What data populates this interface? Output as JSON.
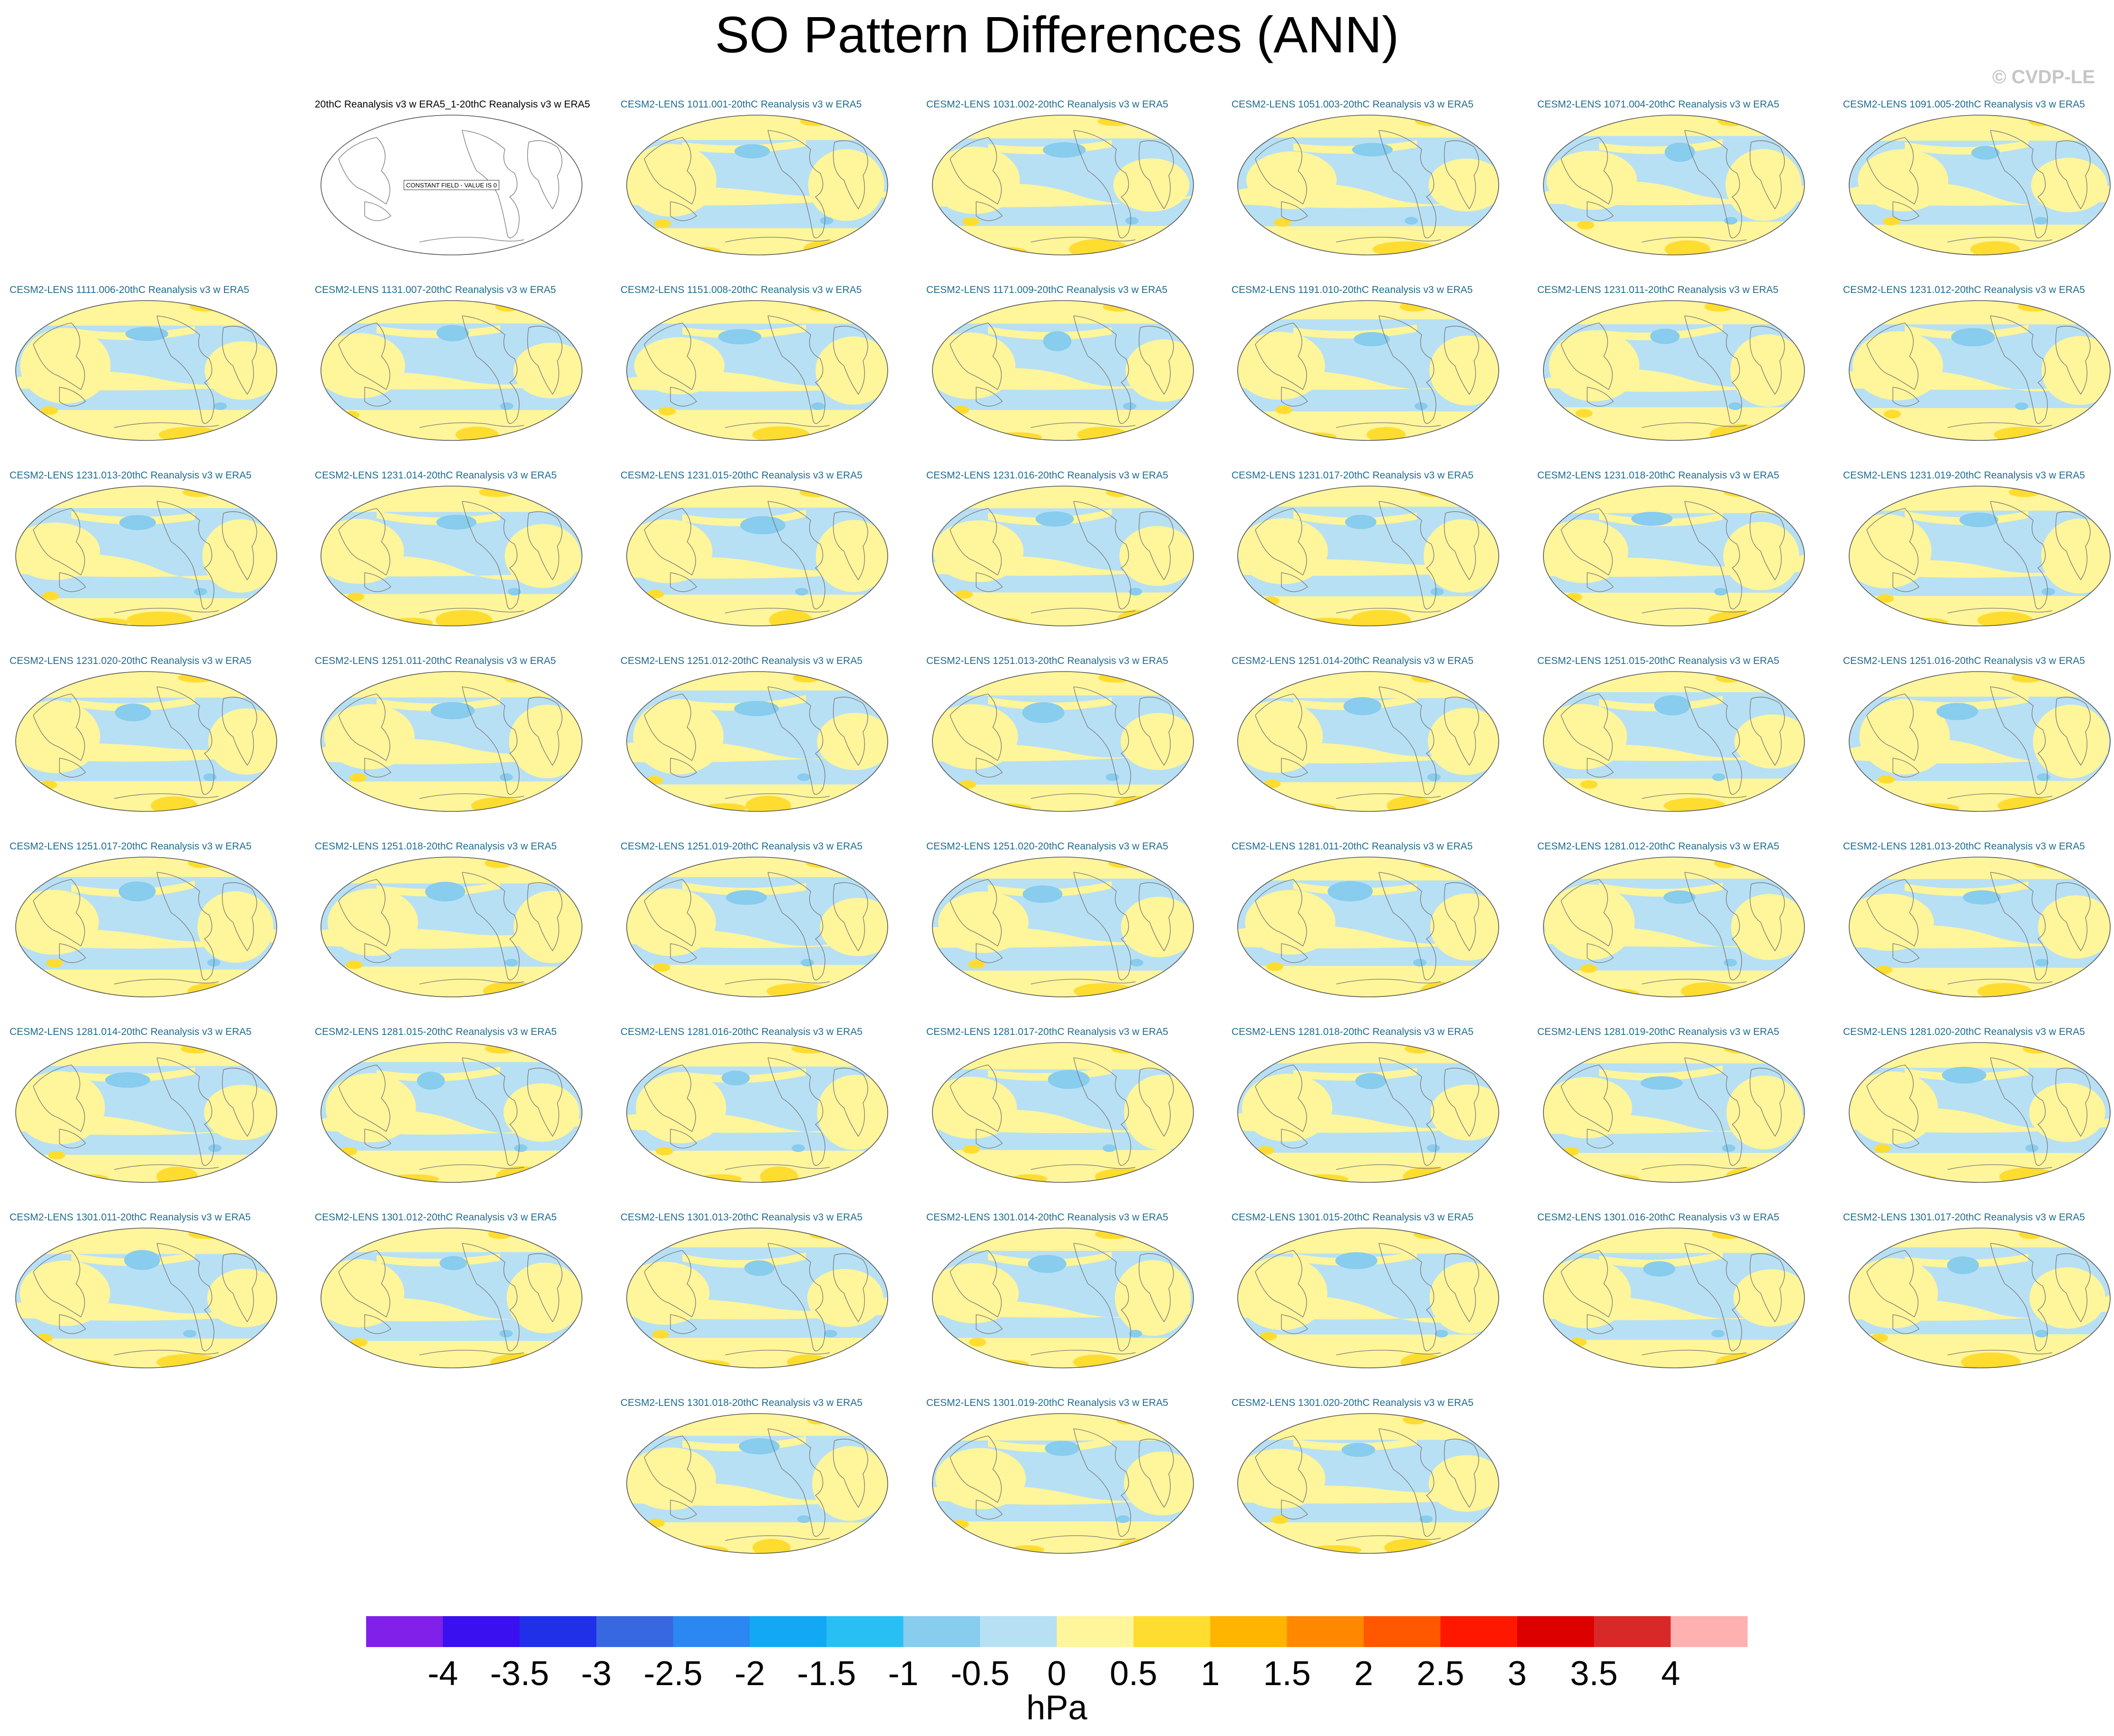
{
  "title": "SO Pattern Differences (ANN)",
  "watermark": "© CVDP-LE",
  "chart_data": {
    "type": "heatmap",
    "title": "SO Pattern Differences (ANN)",
    "variable_units": "hPa",
    "colorbar": {
      "label": "hPa",
      "ticks": [
        "-4",
        "-3.5",
        "-3",
        "-2.5",
        "-2",
        "-1.5",
        "-1",
        "-0.5",
        "0",
        "0.5",
        "1",
        "1.5",
        "2",
        "2.5",
        "3",
        "3.5",
        "4"
      ],
      "levels": [
        -4,
        -3.5,
        -3,
        -2.5,
        -2,
        -1.5,
        -1,
        -0.5,
        0,
        0.5,
        1,
        1.5,
        2,
        2.5,
        3,
        3.5,
        4
      ],
      "colors": [
        "#8020e8",
        "#3a10f0",
        "#2030e8",
        "#3868e0",
        "#2a88f0",
        "#12a8f4",
        "#28c0f4",
        "#88ccee",
        "#b8e0f4",
        "#fff59a",
        "#ffdc30",
        "#ffb400",
        "#ff8800",
        "#ff5800",
        "#ff1800",
        "#dd0000",
        "#d82828",
        "#ffb0b0"
      ]
    },
    "reference_panel": {
      "title": "20thC Reanalysis v3 w ERA5_1-20thC Reanalysis v3 w ERA5",
      "annotation": "CONSTANT FIELD - VALUE IS 0"
    },
    "panels": [
      "CESM2-LENS 1011.001-20thC Reanalysis v3 w ERA5",
      "CESM2-LENS 1031.002-20thC Reanalysis v3 w ERA5",
      "CESM2-LENS 1051.003-20thC Reanalysis v3 w ERA5",
      "CESM2-LENS 1071.004-20thC Reanalysis v3 w ERA5",
      "CESM2-LENS 1091.005-20thC Reanalysis v3 w ERA5",
      "CESM2-LENS 1111.006-20thC Reanalysis v3 w ERA5",
      "CESM2-LENS 1131.007-20thC Reanalysis v3 w ERA5",
      "CESM2-LENS 1151.008-20thC Reanalysis v3 w ERA5",
      "CESM2-LENS 1171.009-20thC Reanalysis v3 w ERA5",
      "CESM2-LENS 1191.010-20thC Reanalysis v3 w ERA5",
      "CESM2-LENS 1231.011-20thC Reanalysis v3 w ERA5",
      "CESM2-LENS 1231.012-20thC Reanalysis v3 w ERA5",
      "CESM2-LENS 1231.013-20thC Reanalysis v3 w ERA5",
      "CESM2-LENS 1231.014-20thC Reanalysis v3 w ERA5",
      "CESM2-LENS 1231.015-20thC Reanalysis v3 w ERA5",
      "CESM2-LENS 1231.016-20thC Reanalysis v3 w ERA5",
      "CESM2-LENS 1231.017-20thC Reanalysis v3 w ERA5",
      "CESM2-LENS 1231.018-20thC Reanalysis v3 w ERA5",
      "CESM2-LENS 1231.019-20thC Reanalysis v3 w ERA5",
      "CESM2-LENS 1231.020-20thC Reanalysis v3 w ERA5",
      "CESM2-LENS 1251.011-20thC Reanalysis v3 w ERA5",
      "CESM2-LENS 1251.012-20thC Reanalysis v3 w ERA5",
      "CESM2-LENS 1251.013-20thC Reanalysis v3 w ERA5",
      "CESM2-LENS 1251.014-20thC Reanalysis v3 w ERA5",
      "CESM2-LENS 1251.015-20thC Reanalysis v3 w ERA5",
      "CESM2-LENS 1251.016-20thC Reanalysis v3 w ERA5",
      "CESM2-LENS 1251.017-20thC Reanalysis v3 w ERA5",
      "CESM2-LENS 1251.018-20thC Reanalysis v3 w ERA5",
      "CESM2-LENS 1251.019-20thC Reanalysis v3 w ERA5",
      "CESM2-LENS 1251.020-20thC Reanalysis v3 w ERA5",
      "CESM2-LENS 1281.011-20thC Reanalysis v3 w ERA5",
      "CESM2-LENS 1281.012-20thC Reanalysis v3 w ERA5",
      "CESM2-LENS 1281.013-20thC Reanalysis v3 w ERA5",
      "CESM2-LENS 1281.014-20thC Reanalysis v3 w ERA5",
      "CESM2-LENS 1281.015-20thC Reanalysis v3 w ERA5",
      "CESM2-LENS 1281.016-20thC Reanalysis v3 w ERA5",
      "CESM2-LENS 1281.017-20thC Reanalysis v3 w ERA5",
      "CESM2-LENS 1281.018-20thC Reanalysis v3 w ERA5",
      "CESM2-LENS 1281.019-20thC Reanalysis v3 w ERA5",
      "CESM2-LENS 1281.020-20thC Reanalysis v3 w ERA5",
      "CESM2-LENS 1301.011-20thC Reanalysis v3 w ERA5",
      "CESM2-LENS 1301.012-20thC Reanalysis v3 w ERA5",
      "CESM2-LENS 1301.013-20thC Reanalysis v3 w ERA5",
      "CESM2-LENS 1301.014-20thC Reanalysis v3 w ERA5",
      "CESM2-LENS 1301.015-20thC Reanalysis v3 w ERA5",
      "CESM2-LENS 1301.016-20thC Reanalysis v3 w ERA5",
      "CESM2-LENS 1301.017-20thC Reanalysis v3 w ERA5",
      "CESM2-LENS 1301.018-20thC Reanalysis v3 w ERA5",
      "CESM2-LENS 1301.019-20thC Reanalysis v3 w ERA5",
      "CESM2-LENS 1301.020-20thC Reanalysis v3 w ERA5"
    ]
  }
}
